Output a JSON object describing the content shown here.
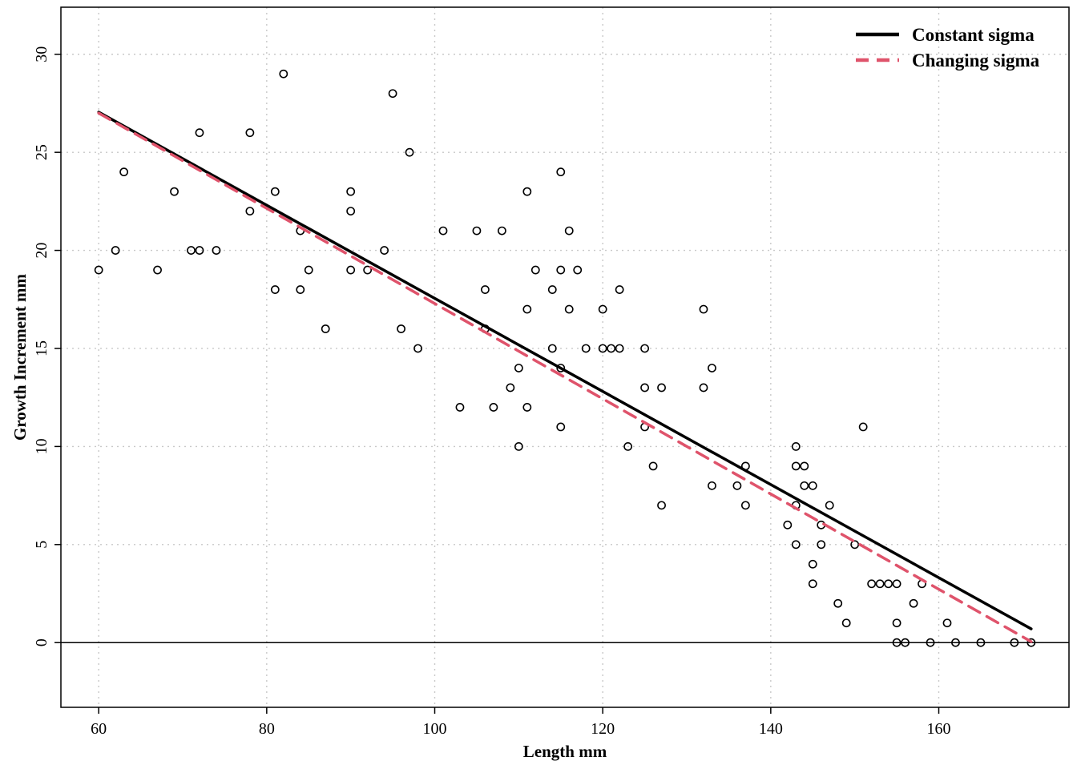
{
  "chart_data": {
    "type": "scatter",
    "xlabel": "Length mm",
    "ylabel": "Growth Increment mm",
    "xlim": [
      55.5,
      175.5
    ],
    "ylim": [
      -3.3,
      32.4
    ],
    "x_ticks": [
      60,
      80,
      100,
      120,
      140,
      160
    ],
    "y_ticks": [
      0,
      5,
      10,
      15,
      20,
      25,
      30
    ],
    "grid": true,
    "grid_style": "dotted",
    "reference_line_y": 0,
    "legend_position": "top-right",
    "points": {
      "x": [
        60,
        62,
        63,
        67,
        69,
        71,
        72,
        72,
        74,
        78,
        78,
        81,
        81,
        82,
        84,
        84,
        85,
        87,
        90,
        90,
        90,
        92,
        94,
        95,
        96,
        97,
        98,
        101,
        103,
        105,
        106,
        106,
        107,
        108,
        109,
        110,
        110,
        111,
        111,
        111,
        112,
        114,
        114,
        115,
        115,
        115,
        115,
        116,
        116,
        117,
        118,
        120,
        120,
        121,
        122,
        122,
        123,
        125,
        125,
        125,
        126,
        127,
        127,
        132,
        132,
        133,
        133,
        136,
        137,
        137,
        142,
        143,
        143,
        143,
        143,
        144,
        144,
        145,
        145,
        145,
        146,
        146,
        147,
        148,
        149,
        150,
        151,
        152,
        153,
        154,
        155,
        155,
        155,
        156,
        157,
        158,
        159,
        161,
        162,
        165,
        169,
        171
      ],
      "y": [
        19,
        20,
        24,
        19,
        23,
        20,
        26,
        20,
        20,
        26,
        22,
        23,
        18,
        29,
        21,
        18,
        19,
        16,
        23,
        22,
        19,
        19,
        20,
        28,
        16,
        25,
        15,
        21,
        12,
        21,
        18,
        16,
        12,
        21,
        13,
        14,
        10,
        23,
        17,
        12,
        19,
        18,
        15,
        24,
        19,
        14,
        11,
        21,
        17,
        19,
        15,
        17,
        15,
        15,
        18,
        15,
        10,
        15,
        13,
        11,
        9,
        13,
        7,
        17,
        13,
        14,
        8,
        8,
        9,
        7,
        6,
        10,
        9,
        7,
        5,
        9,
        8,
        8,
        4,
        3,
        6,
        5,
        7,
        2,
        1,
        5,
        11,
        3,
        3,
        3,
        3,
        1,
        0,
        0,
        2,
        3,
        0,
        1,
        0,
        0,
        0,
        0
      ]
    },
    "series": [
      {
        "name": "Constant sigma",
        "color": "#000000",
        "dash": "solid",
        "x": [
          60,
          171
        ],
        "y": [
          27.05,
          0.7
        ]
      },
      {
        "name": "Changing sigma",
        "color": "#DF536B",
        "dash": "dashed",
        "x": [
          60,
          171
        ],
        "y": [
          27.0,
          0.05
        ]
      }
    ]
  }
}
